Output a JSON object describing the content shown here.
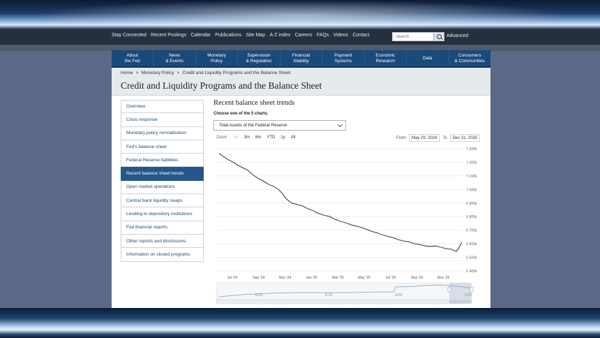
{
  "utility_links": [
    "Stay Connected",
    "Recent Postings",
    "Calendar",
    "Publications",
    "Site Map",
    "A-Z index",
    "Careers",
    "FAQs",
    "Videos",
    "Contact"
  ],
  "search": {
    "placeholder": "Search",
    "advanced_label": "Advanced"
  },
  "main_nav": [
    [
      "About",
      "the Fed"
    ],
    [
      "News",
      "& Events"
    ],
    [
      "Monetary",
      "Policy"
    ],
    [
      "Supervision",
      "& Regulation"
    ],
    [
      "Financial",
      "Stability"
    ],
    [
      "Payment",
      "Systems"
    ],
    [
      "Economic",
      "Research"
    ],
    [
      "Data"
    ],
    [
      "Consumers",
      "& Communities"
    ]
  ],
  "breadcrumb": [
    "Home",
    "Monetary Policy",
    "Credit and Liquidity Programs and the Balance Sheet"
  ],
  "page_title": "Credit and Liquidity Programs and the Balance Sheet",
  "sidebar": {
    "active_index": 5,
    "items": [
      "Overview",
      "Crisis response",
      "Monetary policy normalization",
      "Fed's balance sheet",
      "Federal Reserve liabilities",
      "Recent balance sheet trends",
      "Open market operations",
      "Central bank liquidity swaps",
      "Lending to depository institutions",
      "Fed financial reports",
      "Other reports and disclosures",
      "Information on closed programs"
    ]
  },
  "section_title": "Recent balance sheet trends",
  "choose_label": "Choose one of the 5 charts.",
  "chart_select_value": "Total Assets of the Federal Reserve",
  "zoom": {
    "label": "Zoom",
    "buttons": [
      "1m",
      "3m",
      "6m",
      "YTD",
      "1y",
      "All"
    ],
    "disabled_index": 0
  },
  "range": {
    "from_label": "From",
    "from_value": "May 29, 2024",
    "to_label": "To",
    "to_value": "Dec 31, 2025"
  },
  "colors": {
    "nav_bg": "#1a4a7a",
    "active_item": "#25568a",
    "line": "#1c1c1c"
  },
  "chart_data": {
    "type": "line",
    "y_ticks": [
      "7 300k",
      "7 200k",
      "7 100k",
      "7 000k",
      "6 900k",
      "6 800k",
      "6 700k",
      "6 600k",
      "6 500k",
      "6 400k"
    ],
    "ylim": [
      6400,
      7300
    ],
    "x_ticks": [
      "Jul '24",
      "Sep '24",
      "Nov '24",
      "Jan '25",
      "Mar '25",
      "May '25",
      "Jul '25",
      "Sep '25",
      "Nov '25"
    ],
    "series": [
      {
        "values": [
          [
            0,
            7265
          ],
          [
            0.3,
            7245
          ],
          [
            0.6,
            7225
          ],
          [
            1.0,
            7205
          ],
          [
            1.4,
            7180
          ],
          [
            1.8,
            7160
          ],
          [
            2.2,
            7140
          ],
          [
            2.6,
            7105
          ],
          [
            3.0,
            7080
          ],
          [
            3.4,
            7060
          ],
          [
            3.8,
            7035
          ],
          [
            4.1,
            7025
          ],
          [
            4.5,
            7000
          ],
          [
            4.8,
            6970
          ],
          [
            5.1,
            6930
          ],
          [
            5.5,
            6900
          ],
          [
            5.9,
            6890
          ],
          [
            6.3,
            6880
          ],
          [
            6.7,
            6860
          ],
          [
            7.1,
            6845
          ],
          [
            7.5,
            6825
          ],
          [
            8.0,
            6810
          ],
          [
            8.4,
            6800
          ],
          [
            8.8,
            6780
          ],
          [
            9.2,
            6765
          ],
          [
            9.6,
            6755
          ],
          [
            10.0,
            6740
          ],
          [
            10.4,
            6730
          ],
          [
            10.8,
            6720
          ],
          [
            11.2,
            6705
          ],
          [
            11.6,
            6690
          ],
          [
            12.0,
            6680
          ],
          [
            12.4,
            6665
          ],
          [
            12.8,
            6655
          ],
          [
            13.2,
            6645
          ],
          [
            13.6,
            6630
          ],
          [
            14.0,
            6620
          ],
          [
            14.4,
            6615
          ],
          [
            14.8,
            6600
          ],
          [
            15.2,
            6595
          ],
          [
            15.6,
            6585
          ],
          [
            16.0,
            6580
          ],
          [
            16.4,
            6585
          ],
          [
            16.8,
            6575
          ],
          [
            17.2,
            6565
          ],
          [
            17.6,
            6560
          ],
          [
            17.8,
            6550
          ],
          [
            18.0,
            6545
          ],
          [
            18.2,
            6575
          ],
          [
            18.4,
            6610
          ]
        ]
      }
    ],
    "navigator_ticks": [
      "2010",
      "2015",
      "2020",
      "2025"
    ]
  }
}
